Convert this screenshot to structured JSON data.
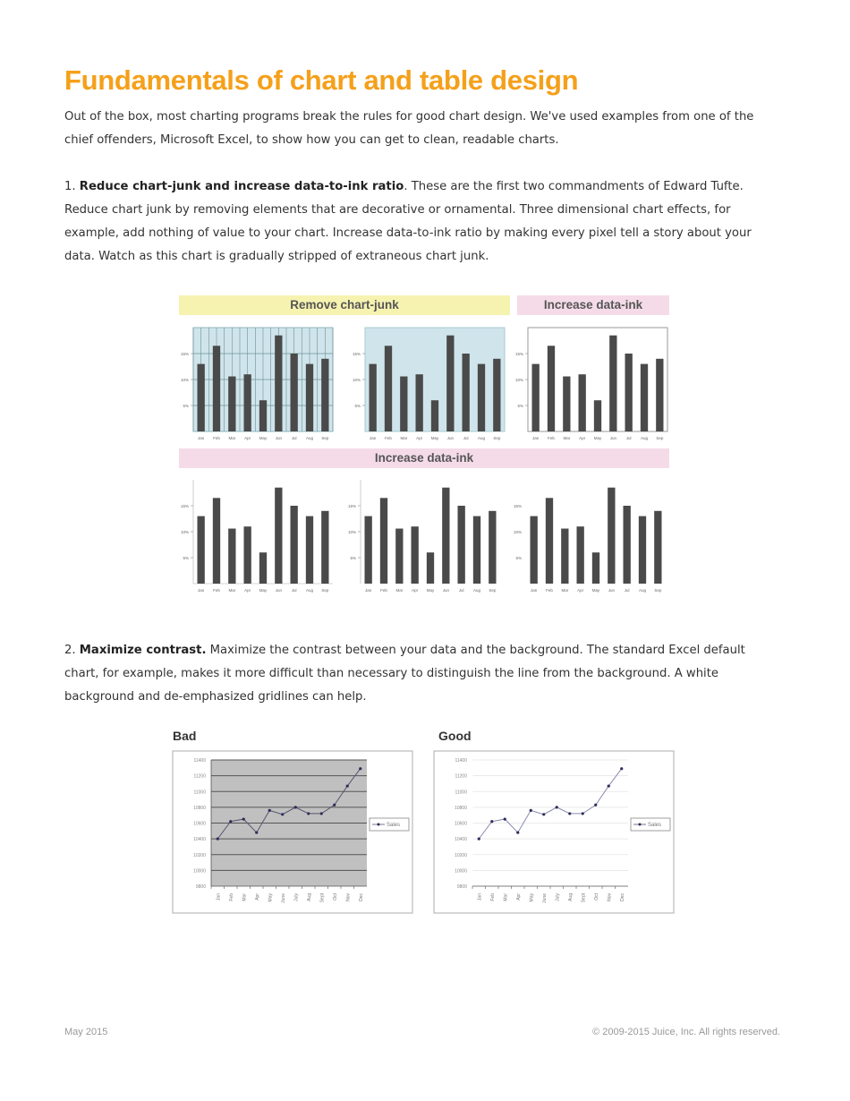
{
  "title": "Fundamentals of chart and table design",
  "intro": "Out of the box, most charting programs break the rules for good chart design. We've used examples from one of the chief offenders, Microsoft Excel, to show how you can get to clean, readable charts.",
  "rule1": {
    "number": "1.",
    "heading": "Reduce chart-junk and increase data-to-ink ratio",
    "text": ". These are the first two commandments of Edward Tufte. Reduce chart junk by removing elements that are decorative or ornamental. Three dimensional chart effects, for example, add nothing of value to your chart. Increase data-to-ink ratio by making every pixel tell a story about your data. Watch as this chart is gradually stripped of extraneous chart junk."
  },
  "figure1": {
    "band_remove": "Remove chart-junk",
    "band_increase_top": "Increase data-ink",
    "band_increase_wide": "Increase data-ink",
    "colors": {
      "band_yellow": "#f6f2b0",
      "band_pink": "#f5dbe8",
      "plot_blue": "#cfe5eb",
      "bar": "#4a4a4a"
    }
  },
  "rule2": {
    "number": "2.",
    "heading": "Maximize contrast.",
    "text": " Maximize the contrast between your data and the background. The standard Excel default chart, for example, makes it more difficult than necessary to distinguish the line from the background. A white background and de-emphasized gridlines can help."
  },
  "chart_data": [
    {
      "type": "bar",
      "categories": [
        "Jan",
        "Feb",
        "Mar",
        "Apr",
        "May",
        "Jun",
        "Jul",
        "Aug",
        "Sep"
      ],
      "values": [
        13,
        16.5,
        10.6,
        11,
        6,
        18.5,
        15,
        13,
        14
      ],
      "yticks": [
        "5%",
        "10%",
        "15%"
      ],
      "ytick_values": [
        5,
        10,
        15
      ],
      "ylim": [
        0,
        20
      ]
    },
    {
      "type": "line",
      "title": "Bad",
      "categories": [
        "Jan",
        "Feb",
        "Mar",
        "Apr",
        "May",
        "June",
        "July",
        "Aug",
        "Sept",
        "Oct",
        "Nov",
        "Dec"
      ],
      "series": [
        {
          "name": "Sales",
          "values": [
            10400,
            10620,
            10650,
            10480,
            10760,
            10710,
            10800,
            10720,
            10720,
            10830,
            11070,
            11290
          ]
        }
      ],
      "yticks": [
        "9800",
        "10000",
        "10200",
        "10400",
        "10600",
        "10800",
        "11000",
        "11200",
        "11400"
      ],
      "ylim": [
        9800,
        11400
      ],
      "background": "#c0c0c0",
      "grid": true,
      "legend": "right"
    },
    {
      "type": "line",
      "title": "Good",
      "categories": [
        "Jan",
        "Feb",
        "Mar",
        "Apr",
        "May",
        "June",
        "July",
        "Aug",
        "Sept",
        "Oct",
        "Nov",
        "Dec"
      ],
      "series": [
        {
          "name": "Sales",
          "values": [
            10400,
            10620,
            10650,
            10480,
            10760,
            10710,
            10800,
            10720,
            10720,
            10830,
            11070,
            11290
          ]
        }
      ],
      "yticks": [
        "9800",
        "10000",
        "10200",
        "10400",
        "10600",
        "10800",
        "11000",
        "11200",
        "11400"
      ],
      "ylim": [
        9800,
        11400
      ],
      "background": "#ffffff",
      "grid": true,
      "legend": "right"
    }
  ],
  "footer": {
    "date": "May 2015",
    "copyright": "© 2009-2015 Juice, Inc. All rights reserved."
  }
}
